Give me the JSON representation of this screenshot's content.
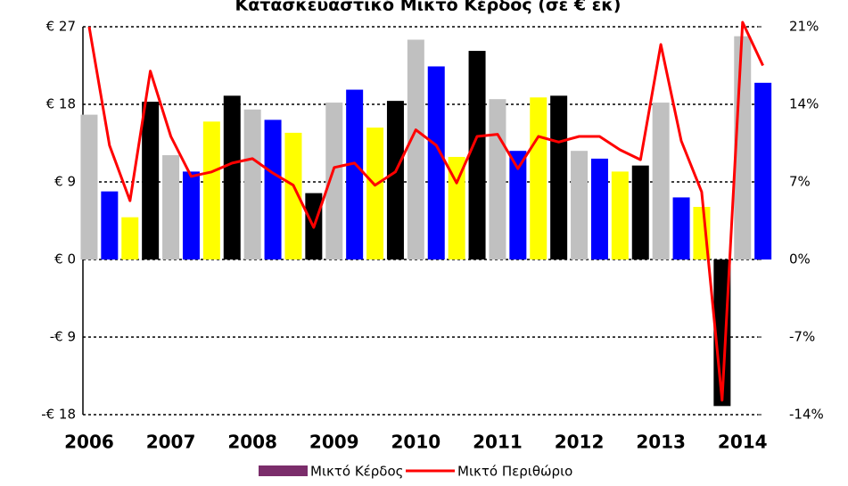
{
  "chart_data": {
    "type": "bar",
    "title": "Κατασκευαστικό Μικτό Κέρδος (σε € εκ)",
    "categories": [
      "2006",
      null,
      null,
      null,
      "2007",
      null,
      null,
      null,
      "2008",
      null,
      null,
      null,
      "2009",
      null,
      null,
      null,
      "2010",
      null,
      null,
      null,
      "2011",
      null,
      null,
      null,
      "2012",
      null,
      null,
      null,
      "2013",
      null,
      null,
      null,
      "2014",
      null
    ],
    "quarter_colors": [
      "#c0c0c0",
      "#0000ff",
      "#ffff00",
      "#000000"
    ],
    "series": [
      {
        "name": "Μικτό Κέρδος",
        "color": "#7b2d6b",
        "values": [
          16.8,
          7.9,
          4.9,
          18.3,
          12.1,
          10.2,
          16,
          19,
          17.4,
          16.2,
          14.7,
          7.7,
          18.2,
          19.7,
          15.3,
          18.4,
          25.5,
          22.4,
          11.9,
          24.2,
          18.6,
          12.6,
          18.8,
          19,
          12.6,
          11.7,
          10.2,
          10.9,
          18.2,
          7.2,
          6.1,
          -17,
          25.9,
          20.5
        ]
      },
      {
        "name": "Μικτό Περιθώριο",
        "color": "#ff0000",
        "axis": "y2",
        "type": "line",
        "values": [
          21,
          10.3,
          5.3,
          17,
          11.1,
          7.5,
          7.9,
          8.7,
          9.1,
          7.8,
          6.7,
          2.9,
          8.3,
          8.7,
          6.7,
          7.9,
          11.7,
          10.3,
          6.9,
          11.1,
          11.3,
          8.2,
          11.1,
          10.6,
          11.1,
          11.1,
          9.9,
          9,
          19.4,
          10.7,
          6.1,
          -12.7,
          21.4,
          17.5
        ]
      }
    ],
    "ylim": [
      -18,
      27
    ],
    "yticks": [
      {
        "value": 27,
        "label": "€ 27"
      },
      {
        "value": 18,
        "label": "€ 18"
      },
      {
        "value": 9,
        "label": "€ 9"
      },
      {
        "value": 0,
        "label": "€ 0"
      },
      {
        "value": -9,
        "label": "-€ 9"
      },
      {
        "value": -18,
        "label": "-€ 18"
      }
    ],
    "y2lim": [
      -14,
      21
    ],
    "y2ticks": [
      {
        "value": 21,
        "label": "21%"
      },
      {
        "value": 14,
        "label": "14%"
      },
      {
        "value": 7,
        "label": "7%"
      },
      {
        "value": 0,
        "label": "0%"
      },
      {
        "value": -7,
        "label": "-7%"
      },
      {
        "value": -14,
        "label": "-14%"
      }
    ],
    "grid": true
  }
}
